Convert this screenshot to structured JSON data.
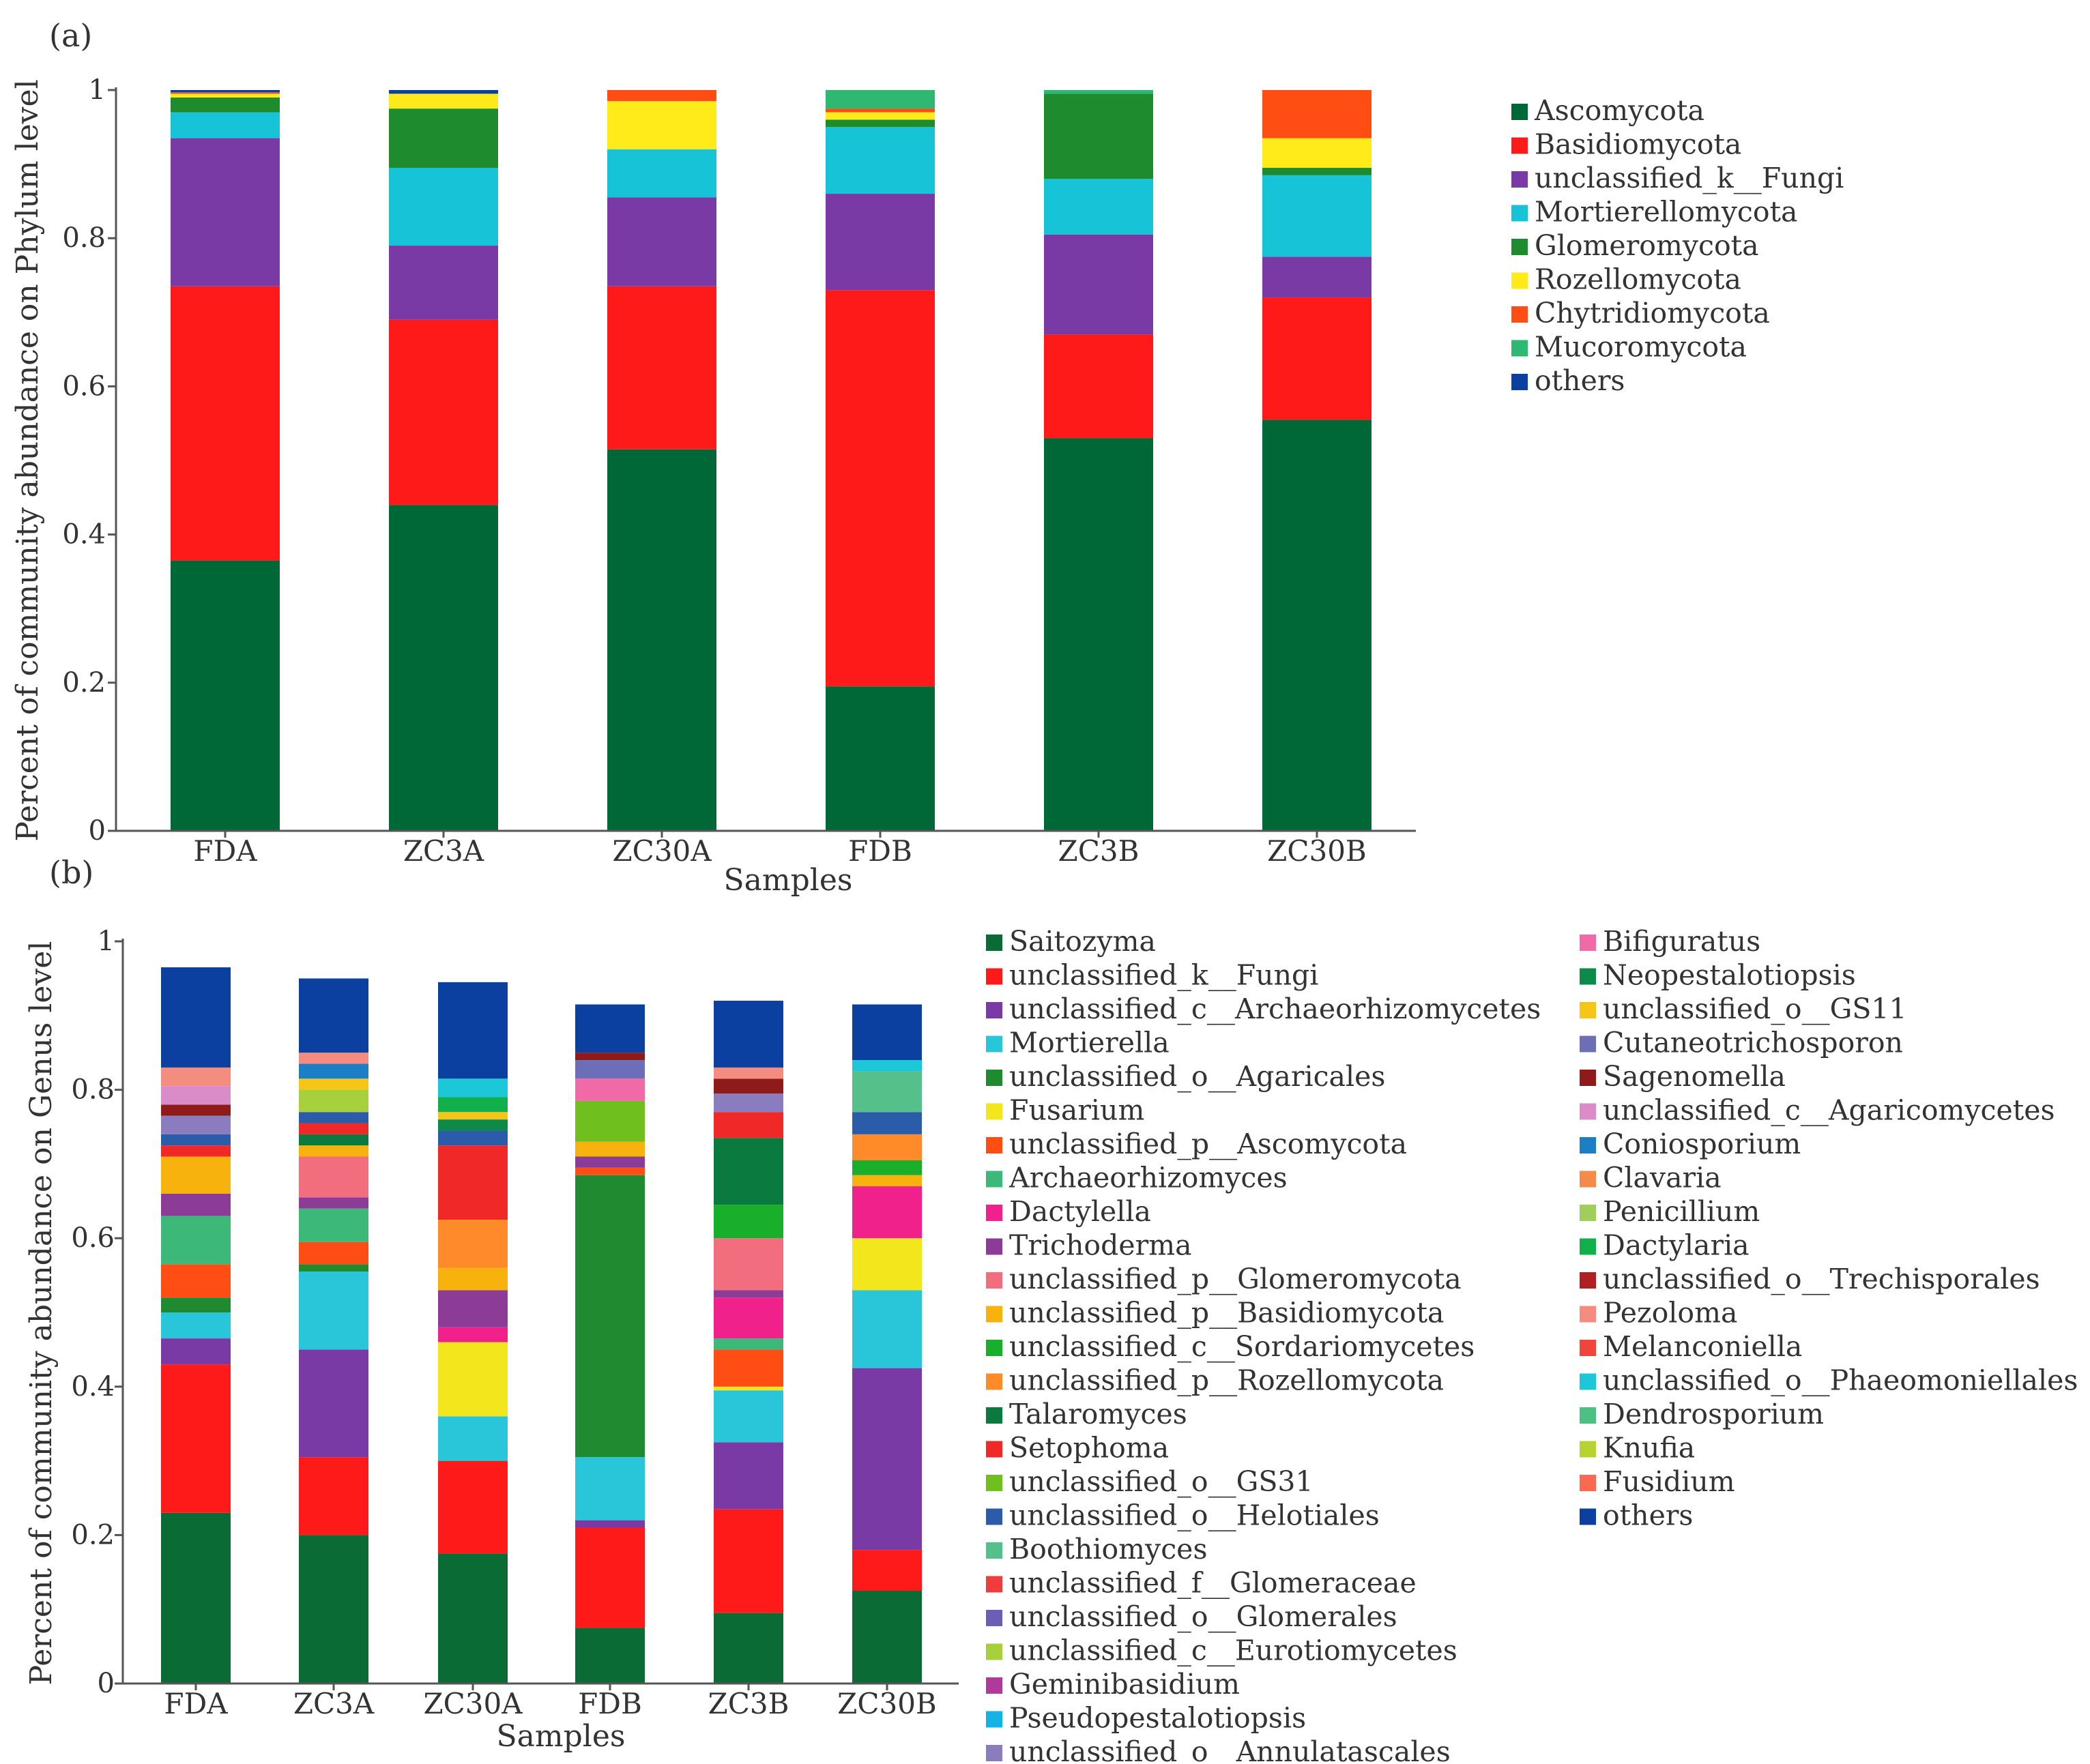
{
  "chart_data": [
    {
      "panel": "(a)",
      "type": "bar",
      "stacked": true,
      "xlabel": "Samples",
      "ylabel": "Percent of community abundance on Phylum level",
      "ylim": [
        0,
        1
      ],
      "yticks": [
        "0",
        "0.2",
        "0.4",
        "0.6",
        "0.8",
        "1"
      ],
      "categories": [
        "FDA",
        "ZC3A",
        "ZC30A",
        "FDB",
        "ZC3B",
        "ZC30B"
      ],
      "series": [
        {
          "name": "Ascomycota",
          "color": "#006837",
          "values": [
            0.365,
            0.44,
            0.515,
            0.195,
            0.53,
            0.555
          ]
        },
        {
          "name": "Basidiomycota",
          "color": "#ff1a1a",
          "values": [
            0.37,
            0.25,
            0.22,
            0.535,
            0.14,
            0.165
          ]
        },
        {
          "name": "unclassified_k__Fungi",
          "color": "#7a3aa6",
          "values": [
            0.2,
            0.1,
            0.12,
            0.13,
            0.135,
            0.055
          ]
        },
        {
          "name": "Mortierellomycota",
          "color": "#17c3d6",
          "values": [
            0.035,
            0.105,
            0.065,
            0.09,
            0.075,
            0.11
          ]
        },
        {
          "name": "Glomeromycota",
          "color": "#1e8c2e",
          "values": [
            0.02,
            0.08,
            0.0,
            0.01,
            0.115,
            0.01
          ]
        },
        {
          "name": "Rozellomycota",
          "color": "#ffeb1a",
          "values": [
            0.005,
            0.02,
            0.065,
            0.01,
            0.0,
            0.04
          ]
        },
        {
          "name": "Chytridiomycota",
          "color": "#ff4d14",
          "values": [
            0.002,
            0.0,
            0.015,
            0.005,
            0.0,
            0.065
          ]
        },
        {
          "name": "Mucoromycota",
          "color": "#2eb872",
          "values": [
            0.0,
            0.0,
            0.0,
            0.025,
            0.005,
            0.0
          ]
        },
        {
          "name": "others",
          "color": "#0b3fa0",
          "values": [
            0.003,
            0.005,
            0.0,
            0.0,
            0.0,
            0.0
          ]
        }
      ]
    },
    {
      "panel": "(b)",
      "type": "bar",
      "stacked": true,
      "xlabel": "Samples",
      "ylabel": "Percent of community abundance on Genus level",
      "ylim": [
        0,
        1
      ],
      "yticks": [
        "0",
        "0.2",
        "0.4",
        "0.6",
        "0.8",
        "1"
      ],
      "categories": [
        "FDA",
        "ZC3A",
        "ZC30A",
        "FDB",
        "ZC3B",
        "ZC30B"
      ],
      "series": [
        {
          "name": "Saitozyma",
          "color": "#0a6b35",
          "values": [
            0.23,
            0.2,
            0.175,
            0.075,
            0.095,
            0.125
          ]
        },
        {
          "name": "unclassified_k__Fungi",
          "color": "#ff1a1a",
          "values": [
            0.2,
            0.105,
            0.125,
            0.135,
            0.14,
            0.055
          ]
        },
        {
          "name": "unclassified_c__Archaeorhizomycetes",
          "color": "#7a3aa6",
          "values": [
            0.035,
            0.145,
            0.0,
            0.01,
            0.09,
            0.245
          ]
        },
        {
          "name": "Mortierella",
          "color": "#29c5d9",
          "values": [
            0.035,
            0.105,
            0.06,
            0.085,
            0.07,
            0.105
          ]
        },
        {
          "name": "unclassified_o__Agaricales",
          "color": "#1f8a30",
          "values": [
            0.02,
            0.01,
            0.0,
            0.38,
            0.0,
            0.0
          ]
        },
        {
          "name": "Fusarium",
          "color": "#f2e61d",
          "values": [
            0.0,
            0.0,
            0.1,
            0.0,
            0.005,
            0.07
          ]
        },
        {
          "name": "unclassified_p__Ascomycota",
          "color": "#ff4d14",
          "values": [
            0.045,
            0.03,
            0.0,
            0.01,
            0.05,
            0.0
          ]
        },
        {
          "name": "Archaeorhizomyces",
          "color": "#3cb878",
          "values": [
            0.065,
            0.045,
            0.0,
            0.0,
            0.015,
            0.0
          ]
        },
        {
          "name": "Dactylella",
          "color": "#f0218a",
          "values": [
            0.0,
            0.0,
            0.02,
            0.0,
            0.055,
            0.07
          ]
        },
        {
          "name": "Trichoderma",
          "color": "#8c3c96",
          "values": [
            0.03,
            0.015,
            0.05,
            0.015,
            0.01,
            0.0
          ]
        },
        {
          "name": "unclassified_p__Glomeromycota",
          "color": "#f26d7d",
          "values": [
            0.0,
            0.055,
            0.0,
            0.0,
            0.07,
            0.0
          ]
        },
        {
          "name": "unclassified_p__Basidiomycota",
          "color": "#f7b20e",
          "values": [
            0.05,
            0.015,
            0.03,
            0.02,
            0.0,
            0.015
          ]
        },
        {
          "name": "unclassified_c__Sordariomycetes",
          "color": "#1aaf2a",
          "values": [
            0.0,
            0.0,
            0.0,
            0.0,
            0.045,
            0.02
          ]
        },
        {
          "name": "unclassified_p__Rozellomycota",
          "color": "#ff8a2a",
          "values": [
            0.0,
            0.0,
            0.065,
            0.0,
            0.0,
            0.035
          ]
        },
        {
          "name": "Talaromyces",
          "color": "#0a7a3e",
          "values": [
            0.0,
            0.015,
            0.0,
            0.0,
            0.09,
            0.0
          ]
        },
        {
          "name": "Setophoma",
          "color": "#f02828",
          "values": [
            0.015,
            0.015,
            0.1,
            0.0,
            0.035,
            0.0
          ]
        },
        {
          "name": "unclassified_o__GS31",
          "color": "#6fbf1e",
          "values": [
            0.0,
            0.0,
            0.0,
            0.055,
            0.0,
            0.0
          ]
        },
        {
          "name": "unclassified_o__Helotiales",
          "color": "#2a5caa",
          "values": [
            0.015,
            0.015,
            0.02,
            0.0,
            0.0,
            0.03
          ]
        },
        {
          "name": "Boothiomyces",
          "color": "#55c08a",
          "values": [
            0.0,
            0.0,
            0.0,
            0.0,
            0.0,
            0.055
          ]
        },
        {
          "name": "unclassified_f__Glomeraceae",
          "color": "#ee3d3d",
          "values": [
            0.0,
            0.0,
            0.0,
            0.0,
            0.0,
            0.0
          ]
        },
        {
          "name": "unclassified_o__Glomerales",
          "color": "#6a5fb5",
          "values": [
            0.0,
            0.0,
            0.0,
            0.0,
            0.0,
            0.0
          ]
        },
        {
          "name": "unclassified_c__Eurotiomycetes",
          "color": "#a6d13c",
          "values": [
            0.0,
            0.03,
            0.0,
            0.0,
            0.0,
            0.0
          ]
        },
        {
          "name": "Geminibasidium",
          "color": "#b03a9a",
          "values": [
            0.0,
            0.0,
            0.0,
            0.0,
            0.0,
            0.0
          ]
        },
        {
          "name": "Pseudopestalotiopsis",
          "color": "#13b3e6",
          "values": [
            0.0,
            0.0,
            0.0,
            0.0,
            0.0,
            0.0
          ]
        },
        {
          "name": "unclassified_o__Annulatascales",
          "color": "#8b7cc0",
          "values": [
            0.025,
            0.0,
            0.0,
            0.0,
            0.025,
            0.0
          ]
        },
        {
          "name": "Bifiguratus",
          "color": "#f06aa8",
          "values": [
            0.0,
            0.0,
            0.0,
            0.03,
            0.0,
            0.0
          ]
        },
        {
          "name": "Neopestalotiopsis",
          "color": "#0d8a4a",
          "values": [
            0.0,
            0.0,
            0.015,
            0.0,
            0.0,
            0.0
          ]
        },
        {
          "name": "unclassified_o__GS11",
          "color": "#f5c518",
          "values": [
            0.0,
            0.015,
            0.01,
            0.0,
            0.0,
            0.0
          ]
        },
        {
          "name": "Cutaneotrichosporon",
          "color": "#6c6fb8",
          "values": [
            0.0,
            0.0,
            0.0,
            0.025,
            0.0,
            0.0
          ]
        },
        {
          "name": "Sagenomella",
          "color": "#8e1a1a",
          "values": [
            0.015,
            0.0,
            0.0,
            0.01,
            0.02,
            0.0
          ]
        },
        {
          "name": "unclassified_c__Agaricomycetes",
          "color": "#d98cc8",
          "values": [
            0.025,
            0.0,
            0.0,
            0.0,
            0.0,
            0.0
          ]
        },
        {
          "name": "Coniosporium",
          "color": "#1c7ec4",
          "values": [
            0.0,
            0.02,
            0.0,
            0.0,
            0.0,
            0.0
          ]
        },
        {
          "name": "Clavaria",
          "color": "#f58a4a",
          "values": [
            0.0,
            0.0,
            0.0,
            0.0,
            0.0,
            0.0
          ]
        },
        {
          "name": "Penicillium",
          "color": "#9fce5a",
          "values": [
            0.0,
            0.0,
            0.0,
            0.0,
            0.0,
            0.0
          ]
        },
        {
          "name": "Dactylaria",
          "color": "#12b04a",
          "values": [
            0.0,
            0.0,
            0.02,
            0.0,
            0.0,
            0.0
          ]
        },
        {
          "name": "unclassified_o__Trechisporales",
          "color": "#b02020",
          "values": [
            0.0,
            0.0,
            0.0,
            0.0,
            0.0,
            0.0
          ]
        },
        {
          "name": "Pezoloma",
          "color": "#f58c80",
          "values": [
            0.025,
            0.015,
            0.0,
            0.0,
            0.015,
            0.0
          ]
        },
        {
          "name": "Melanconiella",
          "color": "#f0443c",
          "values": [
            0.0,
            0.0,
            0.0,
            0.0,
            0.0,
            0.0
          ]
        },
        {
          "name": "unclassified_o__Phaeomoniellales",
          "color": "#1cc8d8",
          "values": [
            0.0,
            0.0,
            0.025,
            0.0,
            0.0,
            0.015
          ]
        },
        {
          "name": "Dendrosporium",
          "color": "#4cbf82",
          "values": [
            0.0,
            0.0,
            0.0,
            0.0,
            0.0,
            0.0
          ]
        },
        {
          "name": "Knufia",
          "color": "#b7d332",
          "values": [
            0.0,
            0.0,
            0.0,
            0.0,
            0.0,
            0.0
          ]
        },
        {
          "name": "Fusidium",
          "color": "#fa6a50",
          "values": [
            0.0,
            0.0,
            0.0,
            0.0,
            0.0,
            0.0
          ]
        },
        {
          "name": "others",
          "color": "#0b3fa0",
          "values": [
            0.135,
            0.1,
            0.13,
            0.065,
            0.09,
            0.075
          ]
        }
      ]
    }
  ]
}
